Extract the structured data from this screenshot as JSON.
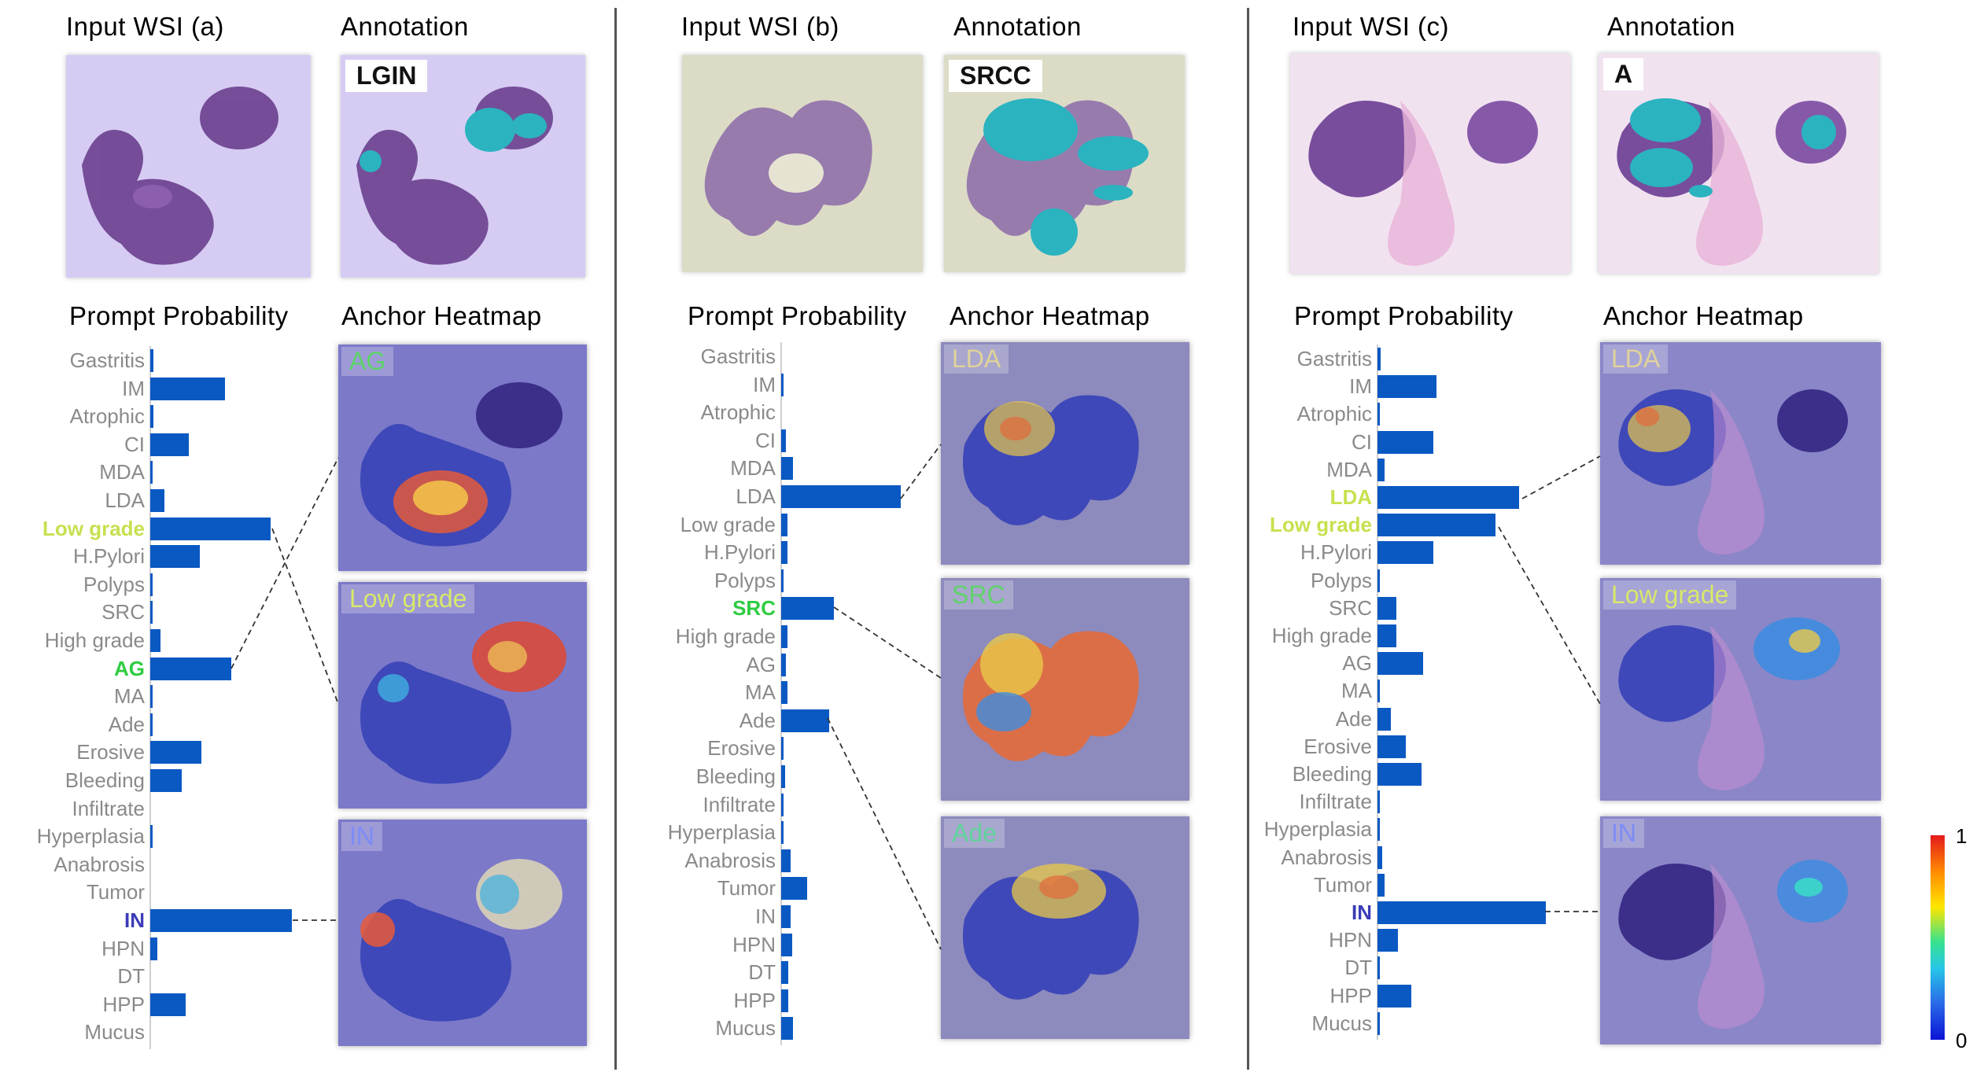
{
  "panels": [
    {
      "input_title": "Input WSI (a)",
      "annotation_title": "Annotation",
      "annotation_label": "LGIN",
      "prob_title": "Prompt Probability",
      "heatmap_title": "Anchor Heatmap",
      "heatmap_labels": [
        "AG",
        "Low grade",
        "IN"
      ],
      "heatmap_label_colors": [
        "#5fd36a",
        "#d8e86a",
        "#7d8cf5"
      ],
      "highlight_colors": {
        "Low grade": "#c6e14f",
        "AG": "#2ecc40",
        "IN": "#3b3bb8"
      },
      "categories": [
        "Gastritis",
        "IM",
        "Atrophic",
        "CI",
        "MDA",
        "LDA",
        "Low grade",
        "H.Pylori",
        "Polyps",
        "SRC",
        "High grade",
        "AG",
        "MA",
        "Ade",
        "Erosive",
        "Bleeding",
        "Infiltrate",
        "Hyperplasia",
        "Anabrosis",
        "Tumor",
        "IN",
        "HPN",
        "DT",
        "HPP",
        "Mucus"
      ],
      "values": [
        0.02,
        0.53,
        0.02,
        0.27,
        0.01,
        0.1,
        0.85,
        0.35,
        0.01,
        0.01,
        0.07,
        0.57,
        0.01,
        0.01,
        0.36,
        0.22,
        0.0,
        0.01,
        0.0,
        0.0,
        1.0,
        0.05,
        0.0,
        0.25,
        0.0
      ]
    },
    {
      "input_title": "Input WSI (b)",
      "annotation_title": "Annotation",
      "annotation_label": "SRCC",
      "prob_title": "Prompt Probability",
      "heatmap_title": "Anchor Heatmap",
      "heatmap_labels": [
        "LDA",
        "SRC",
        "Ade"
      ],
      "heatmap_label_colors": [
        "#e0d29a",
        "#5fd36a",
        "#5fd39a"
      ],
      "highlight_colors": {
        "SRC": "#2ecc40"
      },
      "categories": [
        "Gastritis",
        "IM",
        "Atrophic",
        "CI",
        "MDA",
        "LDA",
        "Low grade",
        "H.Pylori",
        "Polyps",
        "SRC",
        "High grade",
        "AG",
        "MA",
        "Ade",
        "Erosive",
        "Bleeding",
        "Infiltrate",
        "Hyperplasia",
        "Anabrosis",
        "Tumor",
        "IN",
        "HPN",
        "DT",
        "HPP",
        "Mucus"
      ],
      "values": [
        0.0,
        0.02,
        0.0,
        0.04,
        0.1,
        1.0,
        0.05,
        0.05,
        0.01,
        0.44,
        0.05,
        0.04,
        0.05,
        0.4,
        0.02,
        0.03,
        0.02,
        0.01,
        0.08,
        0.22,
        0.08,
        0.09,
        0.06,
        0.06,
        0.1
      ]
    },
    {
      "input_title": "Input WSI (c)",
      "annotation_title": "Annotation",
      "annotation_label": "A",
      "prob_title": "Prompt Probability",
      "heatmap_title": "Anchor Heatmap",
      "heatmap_labels": [
        "LDA",
        "Low grade",
        "IN"
      ],
      "heatmap_label_colors": [
        "#e0d29a",
        "#d8e86a",
        "#7d8cf5"
      ],
      "highlight_colors": {
        "LDA": "#c6e14f",
        "Low grade": "#c6e14f",
        "IN": "#3b3bb8"
      },
      "categories": [
        "Gastritis",
        "IM",
        "Atrophic",
        "CI",
        "MDA",
        "LDA",
        "Low grade",
        "H.Pylori",
        "Polyps",
        "SRC",
        "High grade",
        "AG",
        "MA",
        "Ade",
        "Erosive",
        "Bleeding",
        "Infiltrate",
        "Hyperplasia",
        "Anabrosis",
        "Tumor",
        "IN",
        "HPN",
        "DT",
        "HPP",
        "Mucus"
      ],
      "values": [
        0.02,
        0.35,
        0.01,
        0.33,
        0.04,
        0.84,
        0.7,
        0.33,
        0.01,
        0.11,
        0.11,
        0.27,
        0.01,
        0.08,
        0.17,
        0.26,
        0.01,
        0.01,
        0.03,
        0.04,
        1.0,
        0.12,
        0.01,
        0.2,
        0.01
      ]
    }
  ],
  "colorbar": {
    "max_label": "1",
    "min_label": "0",
    "colors": [
      "#e31a1c",
      "#ffe600",
      "#26c6e8",
      "#0a14d6"
    ]
  }
}
